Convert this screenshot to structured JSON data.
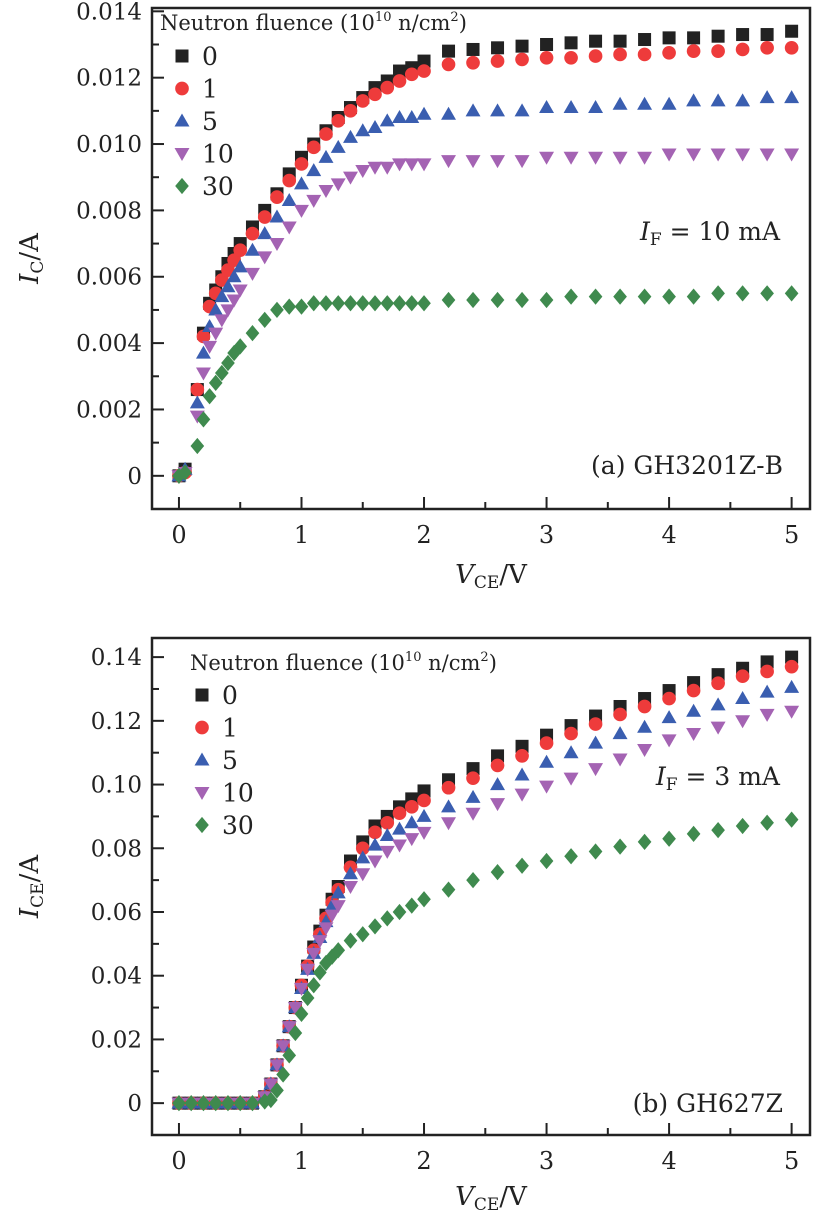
{
  "chart_data": [
    {
      "type": "scatter",
      "panel_label": "(a) GH3201Z-B",
      "annotation": {
        "main": "I",
        "sub": "F",
        "rest": " = 10 mA"
      },
      "xlabel": {
        "main": "V",
        "sub": "CE",
        "rest": "/V"
      },
      "ylabel": {
        "main": "I",
        "sub": "C",
        "rest": "/A"
      },
      "xlim": [
        -0.22,
        5.15
      ],
      "ylim": [
        -0.001,
        0.0141
      ],
      "xticks": [
        0,
        1,
        2,
        3,
        4,
        5
      ],
      "xtick_labels": [
        "0",
        "1",
        "2",
        "3",
        "4",
        "5"
      ],
      "yticks": [
        0,
        0.002,
        0.004,
        0.006,
        0.008,
        0.01,
        0.012,
        0.014
      ],
      "ytick_labels": [
        "0",
        "0.002",
        "0.004",
        "0.006",
        "0.008",
        "0.010",
        "0.012",
        "0.014"
      ],
      "grid": false,
      "legend": {
        "title_main": "Neutron fluence (10",
        "title_sup": "10",
        "title_mid": " n/cm",
        "title_sup2": "2",
        "title_end": ")",
        "placement": "top-left"
      },
      "x": [
        0,
        0.05,
        0.15,
        0.2,
        0.25,
        0.3,
        0.35,
        0.4,
        0.45,
        0.5,
        0.6,
        0.7,
        0.8,
        0.9,
        1.0,
        1.1,
        1.2,
        1.3,
        1.4,
        1.5,
        1.6,
        1.7,
        1.8,
        1.9,
        2.0,
        2.2,
        2.4,
        2.6,
        2.8,
        3.0,
        3.2,
        3.4,
        3.6,
        3.8,
        4.0,
        4.2,
        4.4,
        4.6,
        4.8,
        5.0
      ],
      "series": [
        {
          "name": "0",
          "marker": "square",
          "color": "#222222",
          "values": [
            0,
            0.0002,
            0.0026,
            0.0043,
            0.0052,
            0.0056,
            0.006,
            0.0064,
            0.0067,
            0.007,
            0.0075,
            0.008,
            0.0085,
            0.0091,
            0.0096,
            0.01,
            0.0104,
            0.0108,
            0.0111,
            0.0114,
            0.0117,
            0.0119,
            0.0122,
            0.0123,
            0.0125,
            0.0128,
            0.01285,
            0.0129,
            0.01295,
            0.013,
            0.01305,
            0.0131,
            0.0131,
            0.01315,
            0.0132,
            0.0132,
            0.01325,
            0.0133,
            0.0133,
            0.0134
          ]
        },
        {
          "name": "1",
          "marker": "circle",
          "color": "#ee3b3b",
          "values": [
            0,
            0.0001,
            0.0026,
            0.0042,
            0.0051,
            0.0055,
            0.0059,
            0.0062,
            0.0065,
            0.0068,
            0.0073,
            0.0078,
            0.0084,
            0.0089,
            0.0094,
            0.0099,
            0.0103,
            0.0107,
            0.011,
            0.0113,
            0.0115,
            0.0117,
            0.0119,
            0.0121,
            0.0122,
            0.0124,
            0.01245,
            0.0125,
            0.01255,
            0.0126,
            0.0126,
            0.01265,
            0.0127,
            0.0127,
            0.01275,
            0.0128,
            0.0128,
            0.01285,
            0.0129,
            0.0129
          ]
        },
        {
          "name": "5",
          "marker": "triangle-up",
          "color": "#3a5eb0",
          "values": [
            0,
            0.0002,
            0.0022,
            0.0037,
            0.0045,
            0.005,
            0.0054,
            0.0057,
            0.006,
            0.0063,
            0.0068,
            0.0073,
            0.0078,
            0.0083,
            0.0088,
            0.0092,
            0.0096,
            0.0099,
            0.0102,
            0.0104,
            0.0105,
            0.0107,
            0.0108,
            0.0108,
            0.0109,
            0.0109,
            0.011,
            0.011,
            0.011,
            0.0111,
            0.0111,
            0.0111,
            0.0112,
            0.0112,
            0.0112,
            0.0113,
            0.0113,
            0.0113,
            0.0114,
            0.0114
          ]
        },
        {
          "name": "10",
          "marker": "triangle-down",
          "color": "#a463b3",
          "values": [
            0,
            0.0001,
            0.0018,
            0.0031,
            0.0039,
            0.0043,
            0.0047,
            0.005,
            0.0053,
            0.0056,
            0.0061,
            0.0066,
            0.007,
            0.0075,
            0.008,
            0.0083,
            0.0086,
            0.0088,
            0.009,
            0.0092,
            0.0093,
            0.0093,
            0.0094,
            0.0094,
            0.0094,
            0.0095,
            0.0095,
            0.0095,
            0.0095,
            0.0096,
            0.0096,
            0.0096,
            0.0096,
            0.0096,
            0.0097,
            0.0097,
            0.0097,
            0.0097,
            0.0097,
            0.0097
          ]
        },
        {
          "name": "30",
          "marker": "diamond",
          "color": "#3f8a4e",
          "values": [
            0,
            0.0001,
            0.0009,
            0.0017,
            0.0024,
            0.0028,
            0.0031,
            0.0034,
            0.0037,
            0.0039,
            0.0043,
            0.0047,
            0.005,
            0.0051,
            0.0051,
            0.0052,
            0.0052,
            0.0052,
            0.0052,
            0.0052,
            0.0052,
            0.0052,
            0.0052,
            0.0052,
            0.0052,
            0.0053,
            0.0053,
            0.0053,
            0.0053,
            0.0053,
            0.0054,
            0.0054,
            0.0054,
            0.0054,
            0.0054,
            0.0054,
            0.0055,
            0.0055,
            0.0055,
            0.0055
          ]
        }
      ]
    },
    {
      "type": "scatter",
      "panel_label": "(b) GH627Z",
      "annotation": {
        "main": "I",
        "sub": "F",
        "rest": " = 3 mA"
      },
      "xlabel": {
        "main": "V",
        "sub": "CE",
        "rest": "/V"
      },
      "ylabel": {
        "main": "I",
        "sub": "CE",
        "rest": "/A"
      },
      "xlim": [
        -0.22,
        5.15
      ],
      "ylim": [
        -0.01,
        0.146
      ],
      "xticks": [
        0,
        1,
        2,
        3,
        4,
        5
      ],
      "xtick_labels": [
        "0",
        "1",
        "2",
        "3",
        "4",
        "5"
      ],
      "yticks": [
        0,
        0.02,
        0.04,
        0.06,
        0.08,
        0.1,
        0.12,
        0.14
      ],
      "ytick_labels": [
        "0",
        "0.02",
        "0.04",
        "0.06",
        "0.08",
        "0.10",
        "0.12",
        "0.14"
      ],
      "grid": false,
      "legend": {
        "title_main": "Neutron fluence (10",
        "title_sup": "10",
        "title_mid": " n/cm",
        "title_sup2": "2",
        "title_end": ")",
        "placement": "top-left"
      },
      "x": [
        0,
        0.1,
        0.2,
        0.3,
        0.4,
        0.5,
        0.6,
        0.7,
        0.75,
        0.8,
        0.85,
        0.9,
        0.95,
        1.0,
        1.05,
        1.1,
        1.15,
        1.2,
        1.25,
        1.3,
        1.4,
        1.5,
        1.6,
        1.7,
        1.8,
        1.9,
        2.0,
        2.2,
        2.4,
        2.6,
        2.8,
        3.0,
        3.2,
        3.4,
        3.6,
        3.8,
        4.0,
        4.2,
        4.4,
        4.6,
        4.8,
        5.0
      ],
      "series": [
        {
          "name": "0",
          "marker": "square",
          "color": "#222222",
          "values": [
            0,
            0,
            0,
            0,
            0,
            0,
            0,
            0.002,
            0.006,
            0.012,
            0.018,
            0.024,
            0.03,
            0.037,
            0.043,
            0.049,
            0.054,
            0.059,
            0.064,
            0.068,
            0.076,
            0.082,
            0.087,
            0.09,
            0.093,
            0.0955,
            0.098,
            0.1015,
            0.105,
            0.109,
            0.112,
            0.1155,
            0.1185,
            0.1215,
            0.1245,
            0.127,
            0.1295,
            0.132,
            0.1345,
            0.1365,
            0.1385,
            0.14
          ]
        },
        {
          "name": "1",
          "marker": "circle",
          "color": "#ee3b3b",
          "values": [
            0,
            0,
            0,
            0,
            0,
            0,
            0,
            0.002,
            0.006,
            0.012,
            0.018,
            0.024,
            0.03,
            0.037,
            0.043,
            0.048,
            0.053,
            0.058,
            0.063,
            0.067,
            0.074,
            0.08,
            0.085,
            0.088,
            0.091,
            0.093,
            0.095,
            0.099,
            0.102,
            0.106,
            0.109,
            0.113,
            0.116,
            0.119,
            0.122,
            0.1245,
            0.127,
            0.1295,
            0.1318,
            0.134,
            0.1355,
            0.137
          ]
        },
        {
          "name": "5",
          "marker": "triangle-up",
          "color": "#3a5eb0",
          "values": [
            0,
            0,
            0,
            0,
            0,
            0,
            0,
            0.002,
            0.006,
            0.012,
            0.018,
            0.024,
            0.03,
            0.036,
            0.042,
            0.047,
            0.052,
            0.057,
            0.062,
            0.066,
            0.072,
            0.077,
            0.081,
            0.084,
            0.086,
            0.088,
            0.09,
            0.093,
            0.096,
            0.1,
            0.103,
            0.107,
            0.11,
            0.113,
            0.116,
            0.118,
            0.121,
            0.123,
            0.125,
            0.127,
            0.129,
            0.1305
          ]
        },
        {
          "name": "10",
          "marker": "triangle-down",
          "color": "#a463b3",
          "values": [
            0,
            0,
            0,
            0,
            0,
            0,
            0,
            0.002,
            0.006,
            0.012,
            0.018,
            0.024,
            0.03,
            0.036,
            0.042,
            0.047,
            0.051,
            0.055,
            0.059,
            0.062,
            0.068,
            0.072,
            0.076,
            0.079,
            0.081,
            0.083,
            0.085,
            0.088,
            0.091,
            0.094,
            0.097,
            0.0995,
            0.102,
            0.105,
            0.108,
            0.111,
            0.114,
            0.116,
            0.118,
            0.12,
            0.122,
            0.123
          ]
        },
        {
          "name": "30",
          "marker": "diamond",
          "color": "#3f8a4e",
          "values": [
            0,
            0,
            0,
            0,
            0,
            0,
            0,
            0.0005,
            0.001,
            0.004,
            0.009,
            0.015,
            0.022,
            0.028,
            0.033,
            0.037,
            0.041,
            0.044,
            0.046,
            0.048,
            0.051,
            0.053,
            0.0555,
            0.058,
            0.06,
            0.062,
            0.064,
            0.067,
            0.07,
            0.0725,
            0.0745,
            0.076,
            0.0775,
            0.079,
            0.0805,
            0.082,
            0.083,
            0.0845,
            0.0857,
            0.087,
            0.088,
            0.089
          ]
        }
      ]
    }
  ]
}
